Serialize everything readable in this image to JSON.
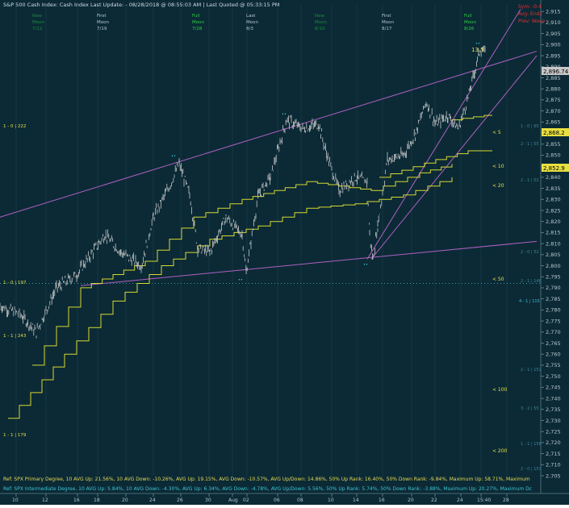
{
  "header": {
    "title_line": "S&P 500 Cash Index:  Cash Index   Last Update:  - 08/28/2018 @ 08:55:03 AM | Last Quoted @ 05:33:15 PM",
    "status_right": [
      "Sym: -0.4",
      "Avg: Ends",
      "Prev: Wave"
    ]
  },
  "moon_phases": [
    {
      "line1": "New",
      "line2": "Moon",
      "line3": "7/12",
      "color": "#1f8a3a"
    },
    {
      "line1": "First",
      "line2": "Moon",
      "line3": "7/19",
      "color": "#b8c6cc"
    },
    {
      "line1": "Full",
      "line2": "Moon",
      "line3": "7/28",
      "color": "#2fd13c"
    },
    {
      "line1": "Last",
      "line2": "Moon",
      "line3": "8/3",
      "color": "#b8c6cc"
    },
    {
      "line1": "New",
      "line2": "Moon",
      "line3": "8/10",
      "color": "#1f8a3a"
    },
    {
      "line1": "First",
      "line2": "Moon",
      "line3": "8/17",
      "color": "#b8c6cc"
    },
    {
      "line1": "Full",
      "line2": "Moon",
      "line3": "8/26",
      "color": "#2fd13c"
    }
  ],
  "chart_data": {
    "type": "line",
    "title": "S&P 500 Cash Index",
    "x_tick_labels": [
      "10",
      "12",
      "16",
      "18",
      "20",
      "24",
      "26",
      "30",
      "Aug",
      "02",
      "06",
      "08",
      "10",
      "14",
      "16",
      "20",
      "22",
      "24",
      "15:40",
      "28"
    ],
    "y_range": [
      2705,
      2918
    ],
    "y_ticks": [
      2705,
      2710,
      2715,
      2720,
      2725,
      2730,
      2735,
      2740,
      2745,
      2750,
      2755,
      2760,
      2765,
      2770,
      2775,
      2780,
      2785,
      2790,
      2795,
      2800,
      2805,
      2810,
      2815,
      2820,
      2825,
      2830,
      2835,
      2840,
      2845,
      2850,
      2855,
      2860,
      2865,
      2870,
      2875,
      2880,
      2885,
      2890,
      2895,
      2900,
      2905,
      2910,
      2915
    ],
    "price_series": {
      "name": "SPX",
      "points": [
        [
          0,
          2782
        ],
        [
          25,
          2778
        ],
        [
          45,
          2770
        ],
        [
          70,
          2790
        ],
        [
          95,
          2796
        ],
        [
          130,
          2814
        ],
        [
          150,
          2806
        ],
        [
          175,
          2800
        ],
        [
          190,
          2822
        ],
        [
          210,
          2836
        ],
        [
          222,
          2846
        ],
        [
          235,
          2832
        ],
        [
          245,
          2808
        ],
        [
          260,
          2806
        ],
        [
          280,
          2822
        ],
        [
          300,
          2814
        ],
        [
          305,
          2797
        ],
        [
          320,
          2832
        ],
        [
          335,
          2840
        ],
        [
          355,
          2866
        ],
        [
          375,
          2862
        ],
        [
          395,
          2864
        ],
        [
          405,
          2850
        ],
        [
          420,
          2834
        ],
        [
          440,
          2840
        ],
        [
          455,
          2838
        ],
        [
          458,
          2814
        ],
        [
          462,
          2803
        ],
        [
          468,
          2818
        ],
        [
          480,
          2848
        ],
        [
          500,
          2850
        ],
        [
          515,
          2860
        ],
        [
          528,
          2874
        ],
        [
          540,
          2864
        ],
        [
          555,
          2868
        ],
        [
          568,
          2862
        ],
        [
          580,
          2876
        ],
        [
          588,
          2888
        ],
        [
          595,
          2898
        ],
        [
          602,
          2896
        ]
      ]
    },
    "moving_averages": [
      {
        "name": "< 5",
        "label_value": "2,868.2",
        "color": "#d8d830"
      },
      {
        "name": "< 10",
        "label_value": "2,852.9",
        "color": "#d8d830"
      },
      {
        "name": "< 20",
        "color": "#d8d830"
      },
      {
        "name": "< 50",
        "color": "#d8d830"
      },
      {
        "name": "< 100",
        "color": "#d8d830"
      },
      {
        "name": "< 200",
        "color": "#d8d830"
      }
    ],
    "ma_lines": [
      [
        [
          560,
          2866
        ],
        [
          600,
          2868
        ],
        [
          610,
          2868
        ]
      ],
      [
        [
          470,
          2840
        ],
        [
          540,
          2848
        ],
        [
          580,
          2852
        ],
        [
          610,
          2852
        ]
      ],
      [
        [
          40,
          2755
        ],
        [
          100,
          2790
        ],
        [
          180,
          2802
        ],
        [
          240,
          2822
        ],
        [
          300,
          2830
        ],
        [
          380,
          2838
        ],
        [
          460,
          2834
        ],
        [
          520,
          2842
        ],
        [
          560,
          2846
        ]
      ],
      [
        [
          10,
          2731
        ],
        [
          80,
          2760
        ],
        [
          140,
          2784
        ],
        [
          200,
          2800
        ],
        [
          260,
          2812
        ],
        [
          320,
          2818
        ],
        [
          380,
          2826
        ],
        [
          440,
          2828
        ],
        [
          500,
          2832
        ],
        [
          560,
          2840
        ]
      ]
    ],
    "current_price_label": "2,896.74",
    "annotation_top": "13.5",
    "level_markers_left": [
      "1 - 0 | 222",
      "1 - 0 | 197",
      "1 - 1 | 243",
      "1 - 1 | 179"
    ],
    "level_markers_right": [
      "1 - 0 | 65",
      "2 - 1 | 55",
      "2 - 1 | 52",
      "2 - 0 | 52",
      "2 - 1 | 148",
      "4 - 1 | 115",
      "2 - 1 | 152",
      "3 - 2 | 55",
      "1 - 1 | 156",
      "2 - 0 | 153"
    ],
    "trendlines": [
      {
        "from": [
          0,
          2822
        ],
        "to": [
          665,
          2897
        ]
      },
      {
        "from": [
          100,
          2791
        ],
        "to": [
          665,
          2811
        ]
      },
      {
        "from": [
          455,
          2803
        ],
        "to": [
          645,
          2916
        ]
      },
      {
        "from": [
          460,
          2803
        ],
        "to": [
          665,
          2895
        ]
      }
    ],
    "dotted_level": 2792
  },
  "footer": {
    "line1": "Ref: SPX Primary Degree, 10 AVG Up: 21.56%, 10 AVG Down: -10.26%, AVG Up: 19.15%, AVG Down: -10.57%, AVG Up/Down: 14.86%, 50%  Up Rank: 16.40%, 50% Down Rank: -9.84%, Maximum Up: 58.71%, Maximum",
    "line2": "Ref: SPX Intermediate Degree, 10 AVG Up: 5.84%, 10 AVG Down: -4.30%, AVG Up: 6.34%, AVG Down: -4.78%, AVG Up/Down: 5.56%, 50%  Up Rank: 5.74%, 50% Down Rank: -3.88%, Maximum Up: 20.27%, Maximum Dc"
  },
  "colors": {
    "background": "#0b2a36",
    "price": "#c8c8c8",
    "ma": "#d8d830",
    "trend": "#b060c0",
    "text_teal": "#3cc6d2",
    "grid": "#2a4a56",
    "footer_yellow": "#e8d850",
    "footer_teal": "#3cc6d2"
  }
}
